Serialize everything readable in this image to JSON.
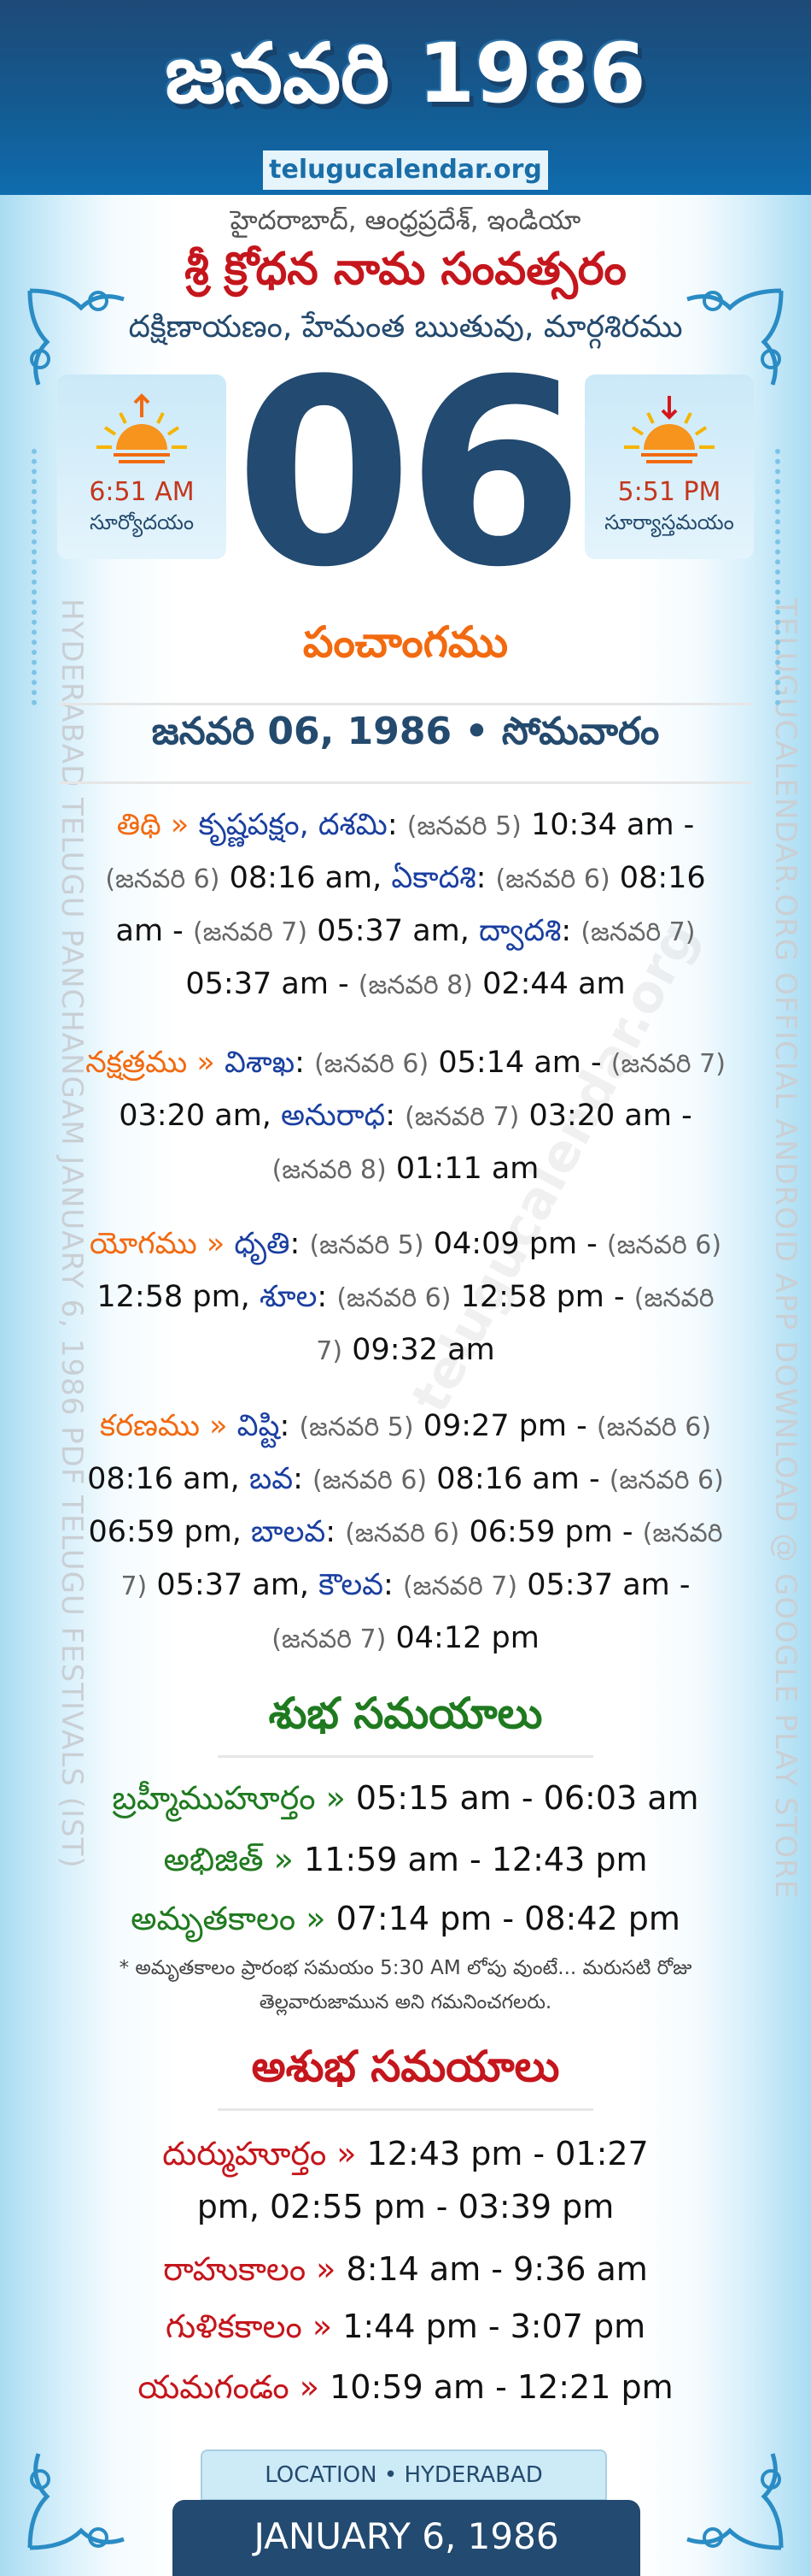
{
  "header": {
    "title": "జనవరి 1986",
    "site": "telugucalendar.org"
  },
  "location": "హైదరాబాద్, ఆంధ్రప్రదేశ్, ఇండియా",
  "samvatsaram": "శ్రీ క్రోధన నామ సంవత్సరం",
  "ayanam": "దక్షిణాయణం, హేమంత ఋతువు, మార్గశిరము",
  "sunrise": {
    "time": "6:51 AM",
    "label": "సూర్యోదయం",
    "icon": "sunrise-icon"
  },
  "sunset": {
    "time": "5:51 PM",
    "label": "సూర్యాస్తమయం",
    "icon": "sunset-icon"
  },
  "day": "06",
  "side": {
    "left": "HYDERABAD TELUGU PANCHANGAM JANUARY 6, 1986 PDF TELUGU FESTIVALS (IST)",
    "right": "TELUGUCALENDAR.ORG OFFICIAL ANDROID APP DOWNLOAD @ GOOGLE PLAY STORE"
  },
  "watermark": "telugucalendar.org",
  "panchangam": {
    "heading": "పంచాంగము",
    "date_line": "జనవరి 06, 1986 • సోమవారం",
    "items": [
      {
        "segments": [
          [
            "label",
            "తిథి » "
          ],
          [
            "name",
            "కృష్ణపక్షం, దశమి"
          ],
          [
            "time",
            ": "
          ],
          [
            "date",
            "(జనవరి 5)"
          ],
          [
            "time",
            " 10:34 am - "
          ],
          [
            "date",
            "(జనవరి 6)"
          ],
          [
            "time",
            " 08:16 am, "
          ],
          [
            "name",
            "ఏకాదశి"
          ],
          [
            "time",
            ": "
          ],
          [
            "date",
            "(జనవరి 6)"
          ],
          [
            "time",
            " 08:16 am - "
          ],
          [
            "date",
            "(జనవరి 7)"
          ],
          [
            "time",
            " 05:37 am, "
          ],
          [
            "name",
            "ద్వాదశి"
          ],
          [
            "time",
            ": "
          ],
          [
            "date",
            "(జనవరి 7)"
          ],
          [
            "time",
            " 05:37 am - "
          ],
          [
            "date",
            "(జనవరి 8)"
          ],
          [
            "time",
            " 02:44 am"
          ]
        ]
      },
      {
        "segments": [
          [
            "label",
            "నక్షత్రము » "
          ],
          [
            "name",
            "విశాఖ"
          ],
          [
            "time",
            ": "
          ],
          [
            "date",
            "(జనవరి 6)"
          ],
          [
            "time",
            " 05:14 am - "
          ],
          [
            "date",
            "(జనవరి 7)"
          ],
          [
            "time",
            " 03:20 am, "
          ],
          [
            "name",
            "అనురాధ"
          ],
          [
            "time",
            ": "
          ],
          [
            "date",
            "(జనవరి 7)"
          ],
          [
            "time",
            " 03:20 am - "
          ],
          [
            "date",
            "(జనవరి 8)"
          ],
          [
            "time",
            " 01:11 am"
          ]
        ]
      },
      {
        "segments": [
          [
            "label",
            "యోగము » "
          ],
          [
            "name",
            "ధృతి"
          ],
          [
            "time",
            ": "
          ],
          [
            "date",
            "(జనవరి 5)"
          ],
          [
            "time",
            " 04:09 pm - "
          ],
          [
            "date",
            "(జనవరి 6)"
          ],
          [
            "time",
            " 12:58 pm, "
          ],
          [
            "name",
            "శూల"
          ],
          [
            "time",
            ": "
          ],
          [
            "date",
            "(జనవరి 6)"
          ],
          [
            "time",
            " 12:58 pm - "
          ],
          [
            "date",
            "(జనవరి 7)"
          ],
          [
            "time",
            " 09:32 am"
          ]
        ]
      },
      {
        "segments": [
          [
            "label",
            "కరణము » "
          ],
          [
            "name",
            "విష్టి"
          ],
          [
            "time",
            ": "
          ],
          [
            "date",
            "(జనవరి 5)"
          ],
          [
            "time",
            " 09:27 pm - "
          ],
          [
            "date",
            "(జనవరి 6)"
          ],
          [
            "time",
            " 08:16 am, "
          ],
          [
            "name",
            "బవ"
          ],
          [
            "time",
            ": "
          ],
          [
            "date",
            "(జనవరి 6)"
          ],
          [
            "time",
            " 08:16 am - "
          ],
          [
            "date",
            "(జనవరి 6)"
          ],
          [
            "time",
            " 06:59 pm, "
          ],
          [
            "name",
            "బాలవ"
          ],
          [
            "time",
            ": "
          ],
          [
            "date",
            "(జనవరి 6)"
          ],
          [
            "time",
            " 06:59 pm - "
          ],
          [
            "date",
            "(జనవరి 7)"
          ],
          [
            "time",
            " 05:37 am, "
          ],
          [
            "name",
            "కౌలవ"
          ],
          [
            "time",
            ": "
          ],
          [
            "date",
            "(జనవరి 7)"
          ],
          [
            "time",
            " 05:37 am - "
          ],
          [
            "date",
            "(జనవరి 7)"
          ],
          [
            "time",
            " 04:12 pm"
          ]
        ]
      }
    ]
  },
  "shubha": {
    "heading": "శుభ సమయాలు",
    "rows": [
      {
        "label": "బ్రహ్మీముహూర్తం »",
        "value": " 05:15 am - 06:03 am"
      },
      {
        "label": "అభిజిత్ »",
        "value": " 11:59 am - 12:43 pm"
      },
      {
        "label": "అమృతకాలం »",
        "value": " 07:14 pm - 08:42 pm"
      }
    ],
    "note": "* అమృతకాలం ప్రారంభ సమయం 5:30 AM లోపు వుంటే... మరుసటి రోజు తెల్లవారుజామున అని గమనించగలరు."
  },
  "ashubha": {
    "heading": "అశుభ సమయాలు",
    "rows": [
      {
        "label": "దుర్ముహూర్తం »",
        "value": " 12:43 pm - 01:27 pm, 02:55 pm - 03:39 pm"
      },
      {
        "label": "రాహుకాలం »",
        "value": " 8:14 am - 9:36 am"
      },
      {
        "label": "గుళికకాలం »",
        "value": " 1:44 pm - 3:07 pm"
      },
      {
        "label": "యమగండం »",
        "value": " 10:59 am - 12:21 pm"
      }
    ]
  },
  "footer": {
    "location": "LOCATION • HYDERABAD",
    "date": "JANUARY 6, 1986"
  },
  "colors": {
    "header": "#1e4a77",
    "orange": "#f26a10",
    "name_blue": "#1a3fa0",
    "green": "#1f7a1f",
    "red": "#c4161c",
    "date_box": "#234a70"
  }
}
